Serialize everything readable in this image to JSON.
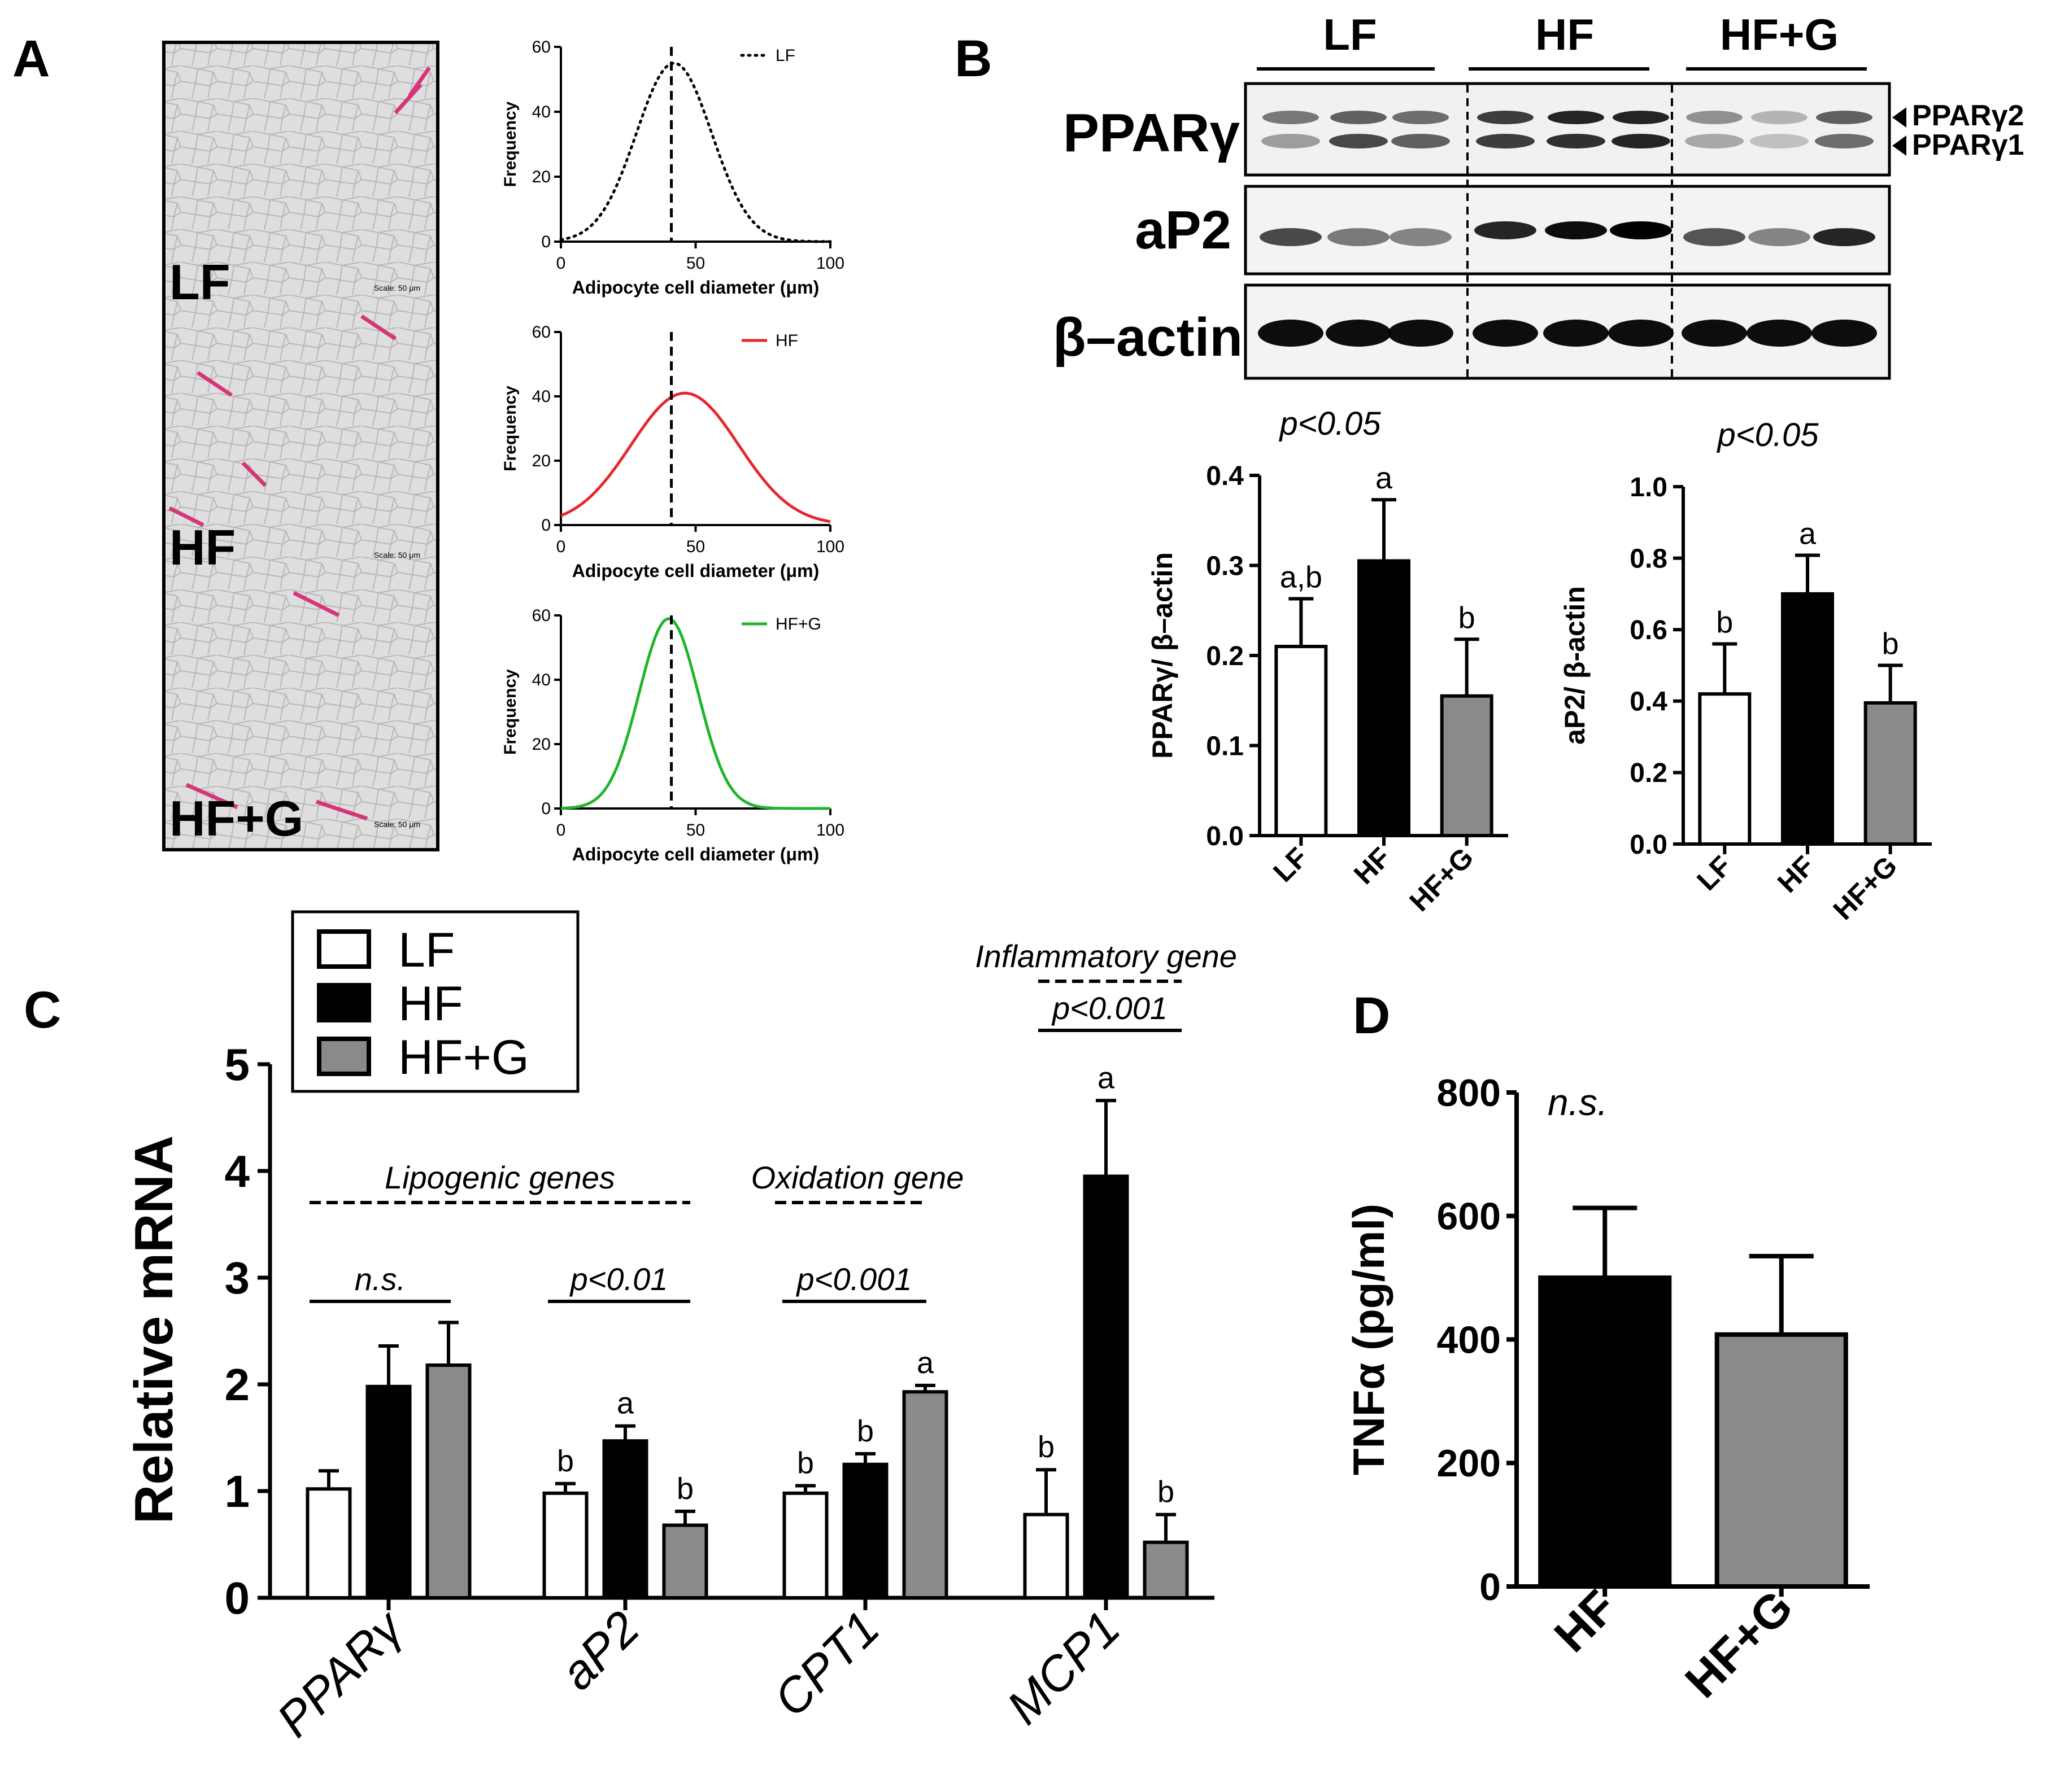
{
  "panels": {
    "A": "A",
    "B": "B",
    "C": "C",
    "D": "D"
  },
  "colors": {
    "lf": "#000000",
    "hf": "#e8262a",
    "hfg": "#1eb52b",
    "bar_black": "#000000",
    "bar_gray": "#8a8a8a",
    "bar_white": "#ffffff",
    "histo_bg": "#dcdcdc",
    "histo_stain": "#d6357a"
  },
  "histology": {
    "labels": [
      "LF",
      "HF",
      "HF+G"
    ],
    "scale_text": "Scale: 50 μm"
  },
  "western": {
    "groups": [
      "LF",
      "HF",
      "HF+G"
    ],
    "rows": [
      "PPARγ",
      "aP2",
      "β–actin"
    ],
    "arrows": [
      "PPARγ2",
      "PPARγ1"
    ]
  },
  "chart_data": [
    {
      "id": "A1",
      "type": "line",
      "title": "",
      "legend": "LF",
      "line_style": "dotted",
      "color": "#000000",
      "xlabel": "Adipocyte cell diameter (μm)",
      "ylabel": "Frequency",
      "xlim": [
        0,
        100
      ],
      "ylim": [
        0,
        60
      ],
      "xticks": [
        0,
        50,
        100
      ],
      "yticks": [
        0,
        20,
        40,
        60
      ],
      "gaussian": {
        "peak": 55,
        "mean": 42,
        "sd": 14
      },
      "reference_line_x": 41
    },
    {
      "id": "A2",
      "type": "line",
      "title": "",
      "legend": "HF",
      "line_style": "solid",
      "color": "#e8262a",
      "xlabel": "Adipocyte cell diameter (μm)",
      "ylabel": "Frequency",
      "xlim": [
        0,
        100
      ],
      "ylim": [
        0,
        60
      ],
      "xticks": [
        0,
        50,
        100
      ],
      "yticks": [
        0,
        20,
        40,
        60
      ],
      "gaussian": {
        "peak": 41,
        "mean": 46,
        "sd": 20
      },
      "reference_line_x": 41
    },
    {
      "id": "A3",
      "type": "line",
      "title": "",
      "legend": "HF+G",
      "line_style": "solid",
      "color": "#1eb52b",
      "xlabel": "Adipocyte cell diameter (μm)",
      "ylabel": "Frequency",
      "xlim": [
        0,
        100
      ],
      "ylim": [
        0,
        60
      ],
      "xticks": [
        0,
        50,
        100
      ],
      "yticks": [
        0,
        20,
        40,
        60
      ],
      "gaussian": {
        "peak": 59,
        "mean": 40,
        "sd": 11
      },
      "reference_line_x": 41
    },
    {
      "id": "B1",
      "type": "bar",
      "title": "p<0.05",
      "ylabel": "PPARγ/ β–actin",
      "categories": [
        "LF",
        "HF",
        "HF+G"
      ],
      "values": [
        0.21,
        0.305,
        0.155
      ],
      "errors": [
        0.053,
        0.068,
        0.063
      ],
      "letters": [
        "a,b",
        "a",
        "b"
      ],
      "fills": [
        "#ffffff",
        "#000000",
        "#8a8a8a"
      ],
      "ylim": [
        0,
        0.4
      ],
      "yticks": [
        "0.0",
        "0.1",
        "0.2",
        "0.3",
        "0.4"
      ]
    },
    {
      "id": "B2",
      "type": "bar",
      "title": "p<0.05",
      "ylabel": "aP2/ β-actin",
      "categories": [
        "LF",
        "HF",
        "HF+G"
      ],
      "values": [
        0.42,
        0.7,
        0.395
      ],
      "errors": [
        0.14,
        0.108,
        0.105
      ],
      "letters": [
        "b",
        "a",
        "b"
      ],
      "fills": [
        "#ffffff",
        "#000000",
        "#8a8a8a"
      ],
      "ylim": [
        0,
        1.0
      ],
      "yticks": [
        "0.0",
        "0.2",
        "0.4",
        "0.6",
        "0.8",
        "1.0"
      ]
    },
    {
      "id": "C",
      "type": "bar",
      "title": "",
      "ylabel": "Relative mRNA",
      "ylim": [
        0,
        5
      ],
      "yticks": [
        "0",
        "1",
        "2",
        "3",
        "4",
        "5"
      ],
      "categories": [
        "PPARγ",
        "aP2",
        "CPT1",
        "MCP1"
      ],
      "series": [
        {
          "name": "LF",
          "fill": "#ffffff",
          "values": [
            1.02,
            0.98,
            0.98,
            0.78
          ],
          "errors": [
            0.17,
            0.09,
            0.07,
            0.42
          ]
        },
        {
          "name": "HF",
          "fill": "#000000",
          "values": [
            1.98,
            1.47,
            1.25,
            3.95
          ],
          "errors": [
            0.38,
            0.14,
            0.1,
            0.71
          ]
        },
        {
          "name": "HF+G",
          "fill": "#8a8a8a",
          "values": [
            2.18,
            0.68,
            1.93,
            0.52
          ],
          "errors": [
            0.4,
            0.13,
            0.06,
            0.26
          ]
        }
      ],
      "letters": [
        [
          "",
          "",
          ""
        ],
        [
          "b",
          "a",
          "b"
        ],
        [
          "b",
          "b",
          "a"
        ],
        [
          "b",
          "a",
          "b"
        ]
      ],
      "stat_labels": [
        "n.s.",
        "p<0.01",
        "p<0.001",
        "p<0.001"
      ],
      "group_labels": [
        "Lipogenic genes",
        "Oxidation gene",
        "Inflammatory gene"
      ],
      "legend_position": "top-left"
    },
    {
      "id": "D",
      "type": "bar",
      "title": "n.s.",
      "ylabel": "TNFα (pg/ml)",
      "categories": [
        "HF",
        "HF+G"
      ],
      "values": [
        500,
        408
      ],
      "errors": [
        113,
        127
      ],
      "fills": [
        "#000000",
        "#8a8a8a"
      ],
      "ylim": [
        0,
        800
      ],
      "yticks": [
        "0",
        "200",
        "400",
        "600",
        "800"
      ]
    }
  ]
}
